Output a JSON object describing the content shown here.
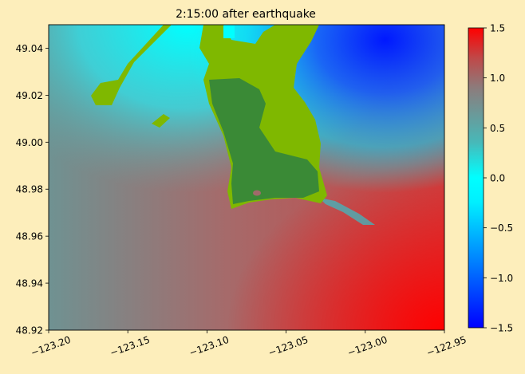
{
  "chart_data": {
    "type": "heatmap",
    "title": "2:15:00 after earthquake",
    "xlabel": "",
    "ylabel": "",
    "xlim": [
      -123.2,
      -122.95
    ],
    "ylim": [
      48.92,
      49.05
    ],
    "x_ticks": [
      -123.2,
      -123.15,
      -123.1,
      -123.05,
      -123.0,
      -122.95
    ],
    "x_tick_labels": [
      "−123.20",
      "−123.15",
      "−123.10",
      "−123.05",
      "−123.00",
      "−122.95"
    ],
    "y_ticks": [
      48.92,
      48.94,
      48.96,
      48.98,
      49.0,
      49.02,
      49.04
    ],
    "y_tick_labels": [
      "48.92",
      "48.94",
      "48.96",
      "48.98",
      "49.00",
      "49.02",
      "49.04"
    ],
    "colorbar": {
      "range": [
        -1.5,
        1.5
      ],
      "ticks": [
        -1.5,
        -1.0,
        -0.5,
        0.0,
        0.5,
        1.0,
        1.5
      ],
      "tick_labels": [
        "−1.5",
        "−1.0",
        "−0.5",
        "0.0",
        "0.5",
        "1.0",
        "1.5"
      ],
      "colors": [
        "#0000ff",
        "#00ffff",
        "#808080",
        "#ff0000"
      ]
    },
    "land_colors": {
      "low_land": "#7fb800",
      "high_land": "#3a8a36"
    },
    "background_color": "#fdeebb",
    "grid": false,
    "surface_field": [
      {
        "lon": -123.2,
        "lat": 49.05,
        "eta": 0.2
      },
      {
        "lon": -123.15,
        "lat": 49.04,
        "eta": 0.0
      },
      {
        "lon": -123.2,
        "lat": 49.0,
        "eta": 0.55
      },
      {
        "lon": -123.2,
        "lat": 48.92,
        "eta": 0.75
      },
      {
        "lon": -123.1,
        "lat": 49.0,
        "eta": 1.0
      },
      {
        "lon": -123.05,
        "lat": 48.96,
        "eta": 1.05
      },
      {
        "lon": -122.97,
        "lat": 49.0,
        "eta": 1.05
      },
      {
        "lon": -122.95,
        "lat": 48.92,
        "eta": 1.5
      },
      {
        "lon": -123.0,
        "lat": 49.02,
        "eta": 0.0
      },
      {
        "lon": -123.01,
        "lat": 49.04,
        "eta": -1.2
      },
      {
        "lon": -122.96,
        "lat": 49.045,
        "eta": -1.4
      }
    ]
  }
}
